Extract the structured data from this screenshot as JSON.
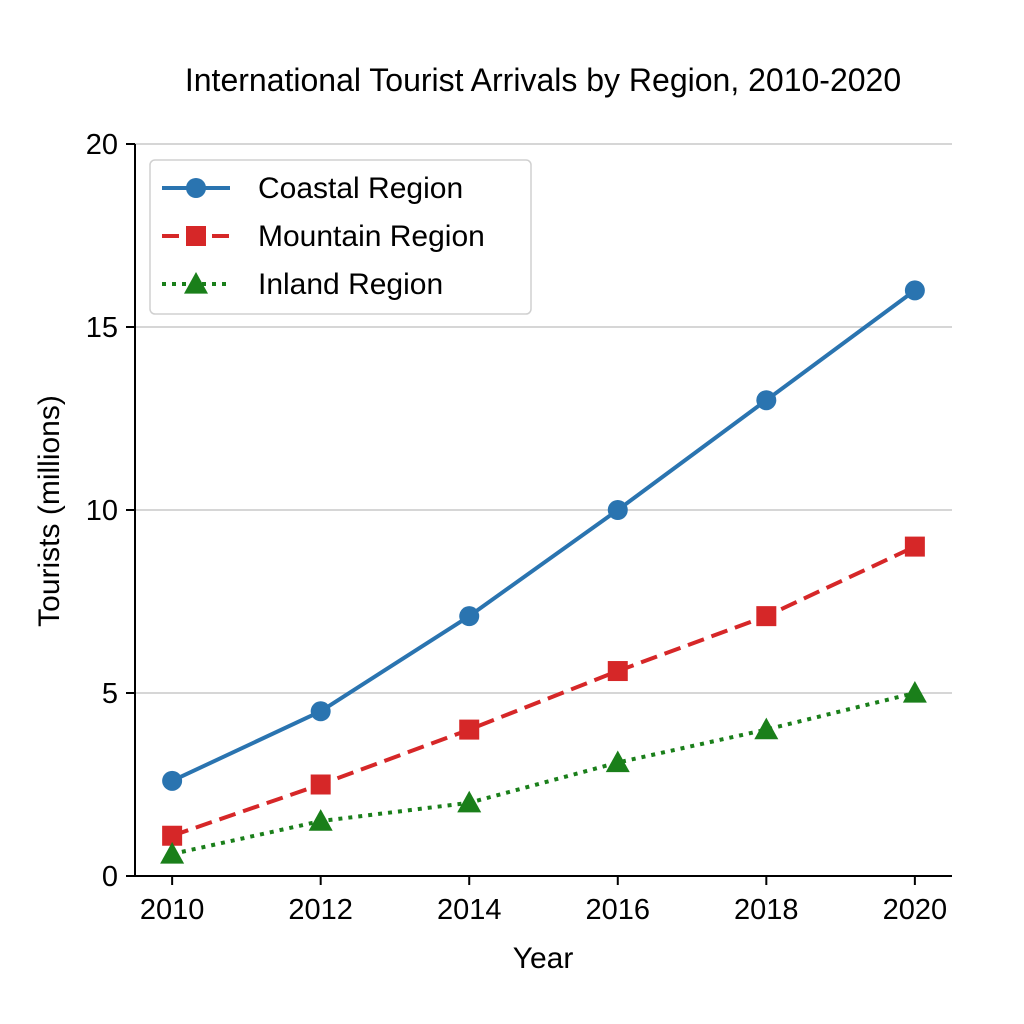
{
  "chart_data": {
    "type": "line",
    "title": "International Tourist Arrivals by Region, 2010-2020",
    "xlabel": "Year",
    "ylabel": "Tourists (millions)",
    "x": [
      2010,
      2012,
      2014,
      2016,
      2018,
      2020
    ],
    "x_tick_labels": [
      "2010",
      "2012",
      "2014",
      "2016",
      "2018",
      "2020"
    ],
    "y_ticks": [
      0,
      5,
      10,
      15,
      20
    ],
    "y_tick_labels": [
      "0",
      "5",
      "10",
      "15",
      "20"
    ],
    "ylim": [
      0,
      20
    ],
    "xlim": [
      2009.5,
      2020.5
    ],
    "grid": "horizontal",
    "legend_position": "top-left",
    "series": [
      {
        "name": "Coastal Region",
        "values": [
          2.6,
          4.5,
          7.1,
          10.0,
          13.0,
          16.0
        ],
        "color": "#2a74b0",
        "line_style": "solid",
        "marker": "circle"
      },
      {
        "name": "Mountain Region",
        "values": [
          1.1,
          2.5,
          4.0,
          5.6,
          7.1,
          9.0
        ],
        "color": "#d62728",
        "line_style": "dashed",
        "marker": "square"
      },
      {
        "name": "Inland Region",
        "values": [
          0.6,
          1.5,
          2.0,
          3.1,
          4.0,
          5.0
        ],
        "color": "#1a7f1a",
        "line_style": "dotted",
        "marker": "triangle"
      }
    ]
  }
}
